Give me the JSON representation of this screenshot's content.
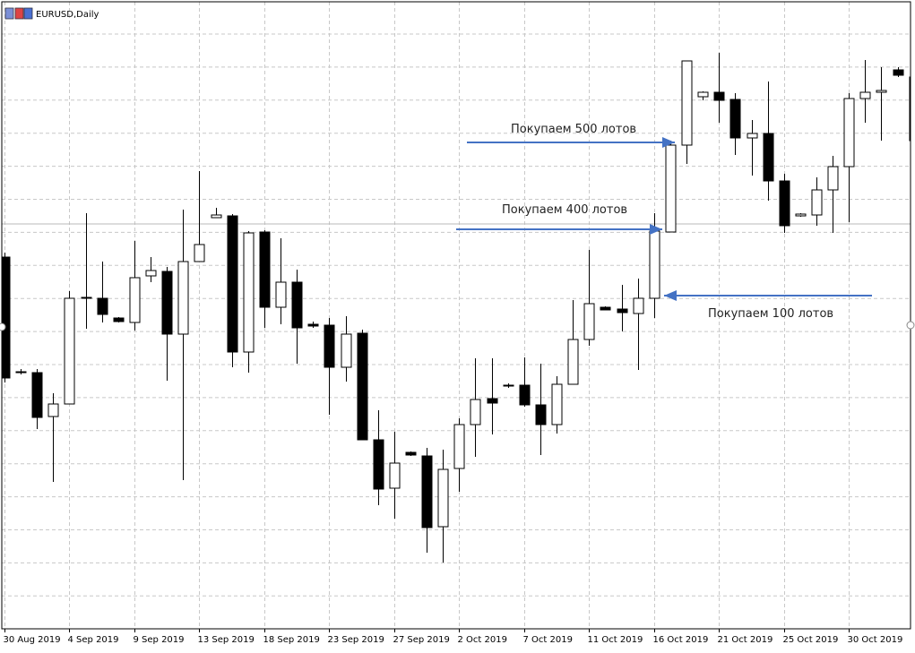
{
  "chart_data": {
    "type": "candlestick",
    "title": "EURUSD,Daily",
    "categories": [
      "30 Aug 2019",
      null,
      null,
      null,
      "4 Sep 2019",
      null,
      null,
      null,
      "9 Sep 2019",
      null,
      null,
      null,
      "13 Sep 2019",
      null,
      null,
      null,
      "18 Sep 2019",
      null,
      null,
      null,
      "23 Sep 2019",
      null,
      null,
      null,
      "27 Sep 2019",
      null,
      null,
      null,
      "2 Oct 2019",
      null,
      null,
      null,
      "7 Oct 2019",
      null,
      null,
      null,
      "11 Oct 2019",
      null,
      null,
      null,
      "16 Oct 2019",
      null,
      null,
      null,
      "21 Oct 2019",
      null,
      null,
      null,
      "25 Oct 2019",
      null,
      null,
      null,
      "30 Oct 2019",
      null,
      null,
      null,
      null
    ],
    "open": [
      1.10875,
      1.10235,
      1.1023,
      1.09985,
      1.10055,
      1.1065,
      1.10645,
      1.10535,
      1.1051,
      1.1077,
      1.10795,
      1.10445,
      1.1085,
      1.11095,
      1.11105,
      1.10345,
      1.11015,
      1.10595,
      1.10735,
      1.105,
      1.10495,
      1.1026,
      1.1045,
      1.09855,
      1.09585,
      1.09785,
      1.09765,
      1.0937,
      1.09695,
      1.0994,
      1.10085,
      1.1016,
      1.1016,
      1.1005,
      1.0994,
      1.10165,
      1.10415,
      1.10595,
      1.10585,
      1.1056,
      1.10645,
      1.11015,
      1.115,
      1.1177,
      1.11795,
      1.11755,
      1.1154,
      1.11565,
      1.113,
      1.11105,
      1.1111,
      1.1125,
      1.1138,
      1.1176,
      1.11795,
      1.1192,
      1.1188
    ],
    "high": [
      1.109,
      1.1025,
      1.1025,
      1.10115,
      1.10685,
      1.1112,
      1.1085,
      1.1054,
      1.10965,
      1.10875,
      1.1082,
      1.1114,
      1.11355,
      1.1115,
      1.11115,
      1.1102,
      1.11025,
      1.1098,
      1.10805,
      1.10515,
      1.10535,
      1.10545,
      1.1047,
      1.1002,
      1.099,
      1.0979,
      1.0981,
      1.098,
      1.09975,
      1.1031,
      1.1031,
      1.1017,
      1.10315,
      1.1028,
      1.1021,
      1.10635,
      1.10915,
      1.106,
      1.1072,
      1.10755,
      1.1112,
      1.11525,
      1.1197,
      1.118,
      1.12015,
      1.1179,
      1.1164,
      1.11855,
      1.1134,
      1.1112,
      1.1132,
      1.1144,
      1.1179,
      1.11975,
      1.11935,
      1.11935,
      1.1189
    ],
    "low": [
      1.10175,
      1.1022,
      1.09915,
      1.0962,
      1.10055,
      1.10475,
      1.1051,
      1.1051,
      1.10465,
      1.10735,
      1.10185,
      1.0963,
      1.1085,
      1.11095,
      1.1026,
      1.1023,
      1.1048,
      1.105,
      1.1028,
      1.1048,
      1.09995,
      1.1018,
      1.09855,
      1.0949,
      1.09415,
      1.09765,
      1.09225,
      1.0917,
      1.09565,
      1.0976,
      1.09885,
      1.10145,
      1.1004,
      1.0977,
      1.0989,
      1.10165,
      1.1038,
      1.1058,
      1.1046,
      1.10245,
      1.10535,
      1.11015,
      1.11395,
      1.1175,
      1.11625,
      1.11445,
      1.1133,
      1.1119,
      1.1101,
      1.111,
      1.1105,
      1.1101,
      1.1107,
      1.11625,
      1.11525,
      1.1188,
      1.11525
    ],
    "close": [
      1.102,
      1.1023,
      1.0998,
      1.10055,
      1.10645,
      1.10645,
      1.10555,
      1.10515,
      1.1076,
      1.108,
      1.10445,
      1.1085,
      1.10945,
      1.1111,
      1.10345,
      1.1101,
      1.10595,
      1.10735,
      1.1048,
      1.1049,
      1.1026,
      1.10445,
      1.09855,
      1.0958,
      1.09725,
      1.0977,
      1.09365,
      1.0969,
      1.0994,
      1.1008,
      1.1006,
      1.10155,
      1.1005,
      1.0994,
      1.10165,
      1.10415,
      1.10615,
      1.1058,
      1.10565,
      1.10645,
      1.1102,
      1.115,
      1.1197,
      1.11795,
      1.1175,
      1.1154,
      1.11565,
      1.113,
      1.1105,
      1.11115,
      1.1125,
      1.1138,
      1.1176,
      1.11795,
      1.11805,
      1.1189,
      1.11525
    ],
    "ylim": [
      1.088,
      1.123
    ],
    "grid": true,
    "up_color": "#ffffff",
    "down_color": "#000000",
    "annotations": [
      "Покупаем 500 лотов",
      "Покупаем 400 лотов",
      "Покупаем 100 лотов"
    ]
  }
}
